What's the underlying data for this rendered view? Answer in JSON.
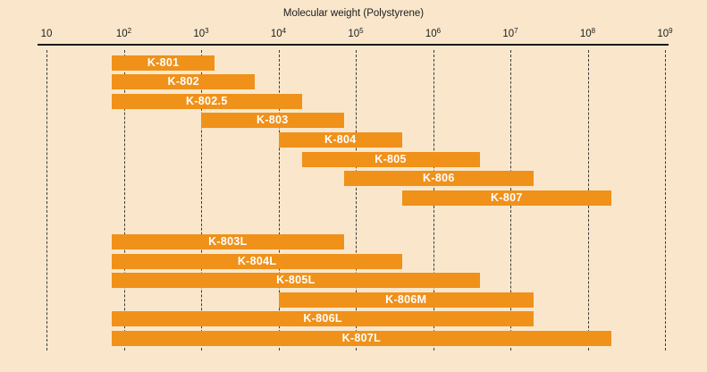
{
  "chart_data": {
    "type": "bar",
    "subtype": "horizontal-range-bars",
    "title": "Molecular weight (Polystyrene)",
    "x_scale": "log",
    "x_axis_base": 10,
    "x_tick_exponents": [
      1,
      2,
      3,
      4,
      5,
      6,
      7,
      8,
      9
    ],
    "xlim": [
      10,
      1000000000
    ],
    "grid": "vertical-dashed",
    "legend": "none",
    "bar_groups": [
      {
        "id": "standard-series",
        "bars": [
          {
            "label": "K-801",
            "mw_min": 70,
            "mw_max": 1500
          },
          {
            "label": "K-802",
            "mw_min": 70,
            "mw_max": 5000
          },
          {
            "label": "K-802.5",
            "mw_min": 70,
            "mw_max": 20000
          },
          {
            "label": "K-803",
            "mw_min": 1000,
            "mw_max": 70000
          },
          {
            "label": "K-804",
            "mw_min": 10000,
            "mw_max": 400000
          },
          {
            "label": "K-805",
            "mw_min": 20000,
            "mw_max": 4000000
          },
          {
            "label": "K-806",
            "mw_min": 70000,
            "mw_max": 20000000
          },
          {
            "label": "K-807",
            "mw_min": 400000,
            "mw_max": 200000000
          }
        ]
      },
      {
        "id": "linear-series",
        "bars": [
          {
            "label": "K-803L",
            "mw_min": 70,
            "mw_max": 70000
          },
          {
            "label": "K-804L",
            "mw_min": 70,
            "mw_max": 400000
          },
          {
            "label": "K-805L",
            "mw_min": 70,
            "mw_max": 4000000
          },
          {
            "label": "K-806M",
            "mw_min": 10000,
            "mw_max": 20000000
          },
          {
            "label": "K-806L",
            "mw_min": 70,
            "mw_max": 20000000
          },
          {
            "label": "K-807L",
            "mw_min": 70,
            "mw_max": 200000000
          }
        ]
      }
    ],
    "colors": {
      "background": "#FAE7CB",
      "bar": "#F0911A",
      "bar_label_text": "#FFFFFF",
      "axis_line": "#1A1A1A",
      "gridline": "#3C3C3C",
      "tick_text": "#1B1B1B"
    }
  }
}
